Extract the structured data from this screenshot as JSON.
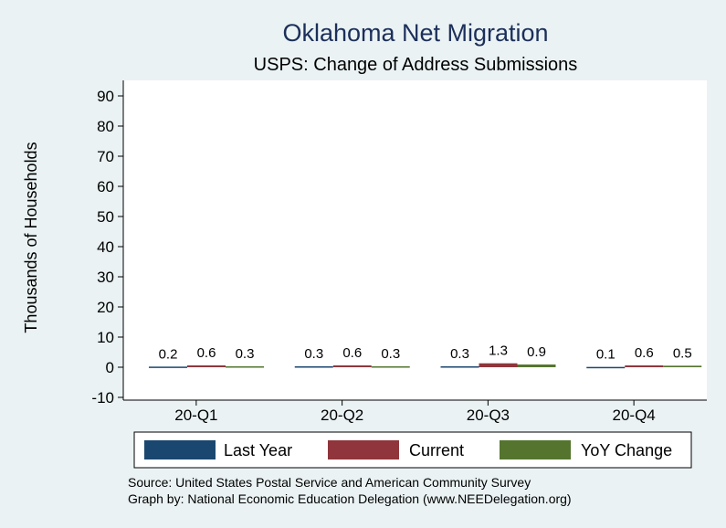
{
  "chart_data": {
    "type": "bar",
    "title": "Oklahoma Net Migration",
    "subtitle": "USPS: Change of Address Submissions",
    "xlabel": "",
    "ylabel": "Thousands of Households",
    "ylim": [
      -10,
      95
    ],
    "yticks": [
      -10,
      0,
      10,
      20,
      30,
      40,
      50,
      60,
      70,
      80,
      90
    ],
    "categories": [
      "20-Q1",
      "20-Q2",
      "20-Q3",
      "20-Q4"
    ],
    "series": [
      {
        "name": "Last Year",
        "color": "#1a476f",
        "values": [
          0.2,
          0.3,
          0.3,
          0.1
        ],
        "labels": [
          "0.2",
          "0.3",
          "0.3",
          "0.1"
        ]
      },
      {
        "name": "Current",
        "color": "#90353b",
        "values": [
          0.6,
          0.6,
          1.3,
          0.6
        ],
        "labels": [
          "0.6",
          "0.6",
          "1.3",
          "0.6"
        ]
      },
      {
        "name": "YoY Change",
        "color": "#55752f",
        "values": [
          0.3,
          0.3,
          0.9,
          0.5
        ],
        "labels": [
          "0.3",
          "0.3",
          "0.9",
          "0.5"
        ]
      }
    ],
    "legend_position": "bottom",
    "notes": [
      "Source: United States Postal Service and American Community Survey",
      "Graph by: National Economic Education Delegation (www.NEEDelegation.org)"
    ]
  }
}
